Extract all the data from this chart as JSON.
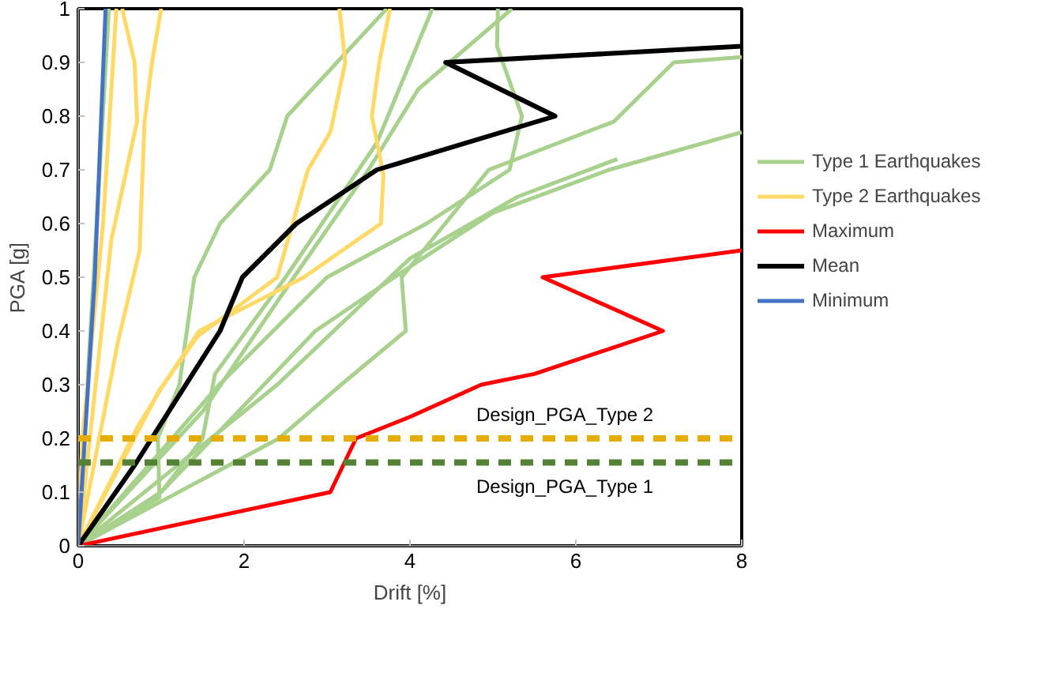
{
  "chart_data": {
    "type": "line",
    "xlabel": "Drift [%]",
    "ylabel": "PGA [g]",
    "xlim": [
      0,
      8
    ],
    "ylim": [
      0,
      1
    ],
    "xticks": [
      0,
      2,
      4,
      6,
      8
    ],
    "yticks": [
      0,
      0.1,
      0.2,
      0.3,
      0.4,
      0.5,
      0.6,
      0.7,
      0.8,
      0.9,
      1
    ],
    "grid": false,
    "legend": "right",
    "marker": "none",
    "line_style": "solid",
    "series": [
      {
        "name": "Type 1 Earthquakes",
        "color": "#a9d18e",
        "x": [
          0,
          0.37
        ],
        "values": [
          0,
          1.0
        ]
      },
      {
        "color": "#a9d18e",
        "x": [
          0,
          0.98,
          0.96,
          1.22,
          1.4,
          1.71,
          2.31,
          2.52,
          3.72
        ],
        "values": [
          0,
          0.09,
          0.2,
          0.3,
          0.5,
          0.6,
          0.7,
          0.8,
          1.0
        ]
      },
      {
        "color": "#a9d18e",
        "x": [
          0,
          1.0,
          1.5,
          1.65,
          2.5,
          3.6,
          4.27
        ],
        "values": [
          0,
          0.1,
          0.2,
          0.32,
          0.5,
          0.75,
          1.0
        ]
      },
      {
        "color": "#a9d18e",
        "x": [
          0,
          1.5,
          2.6,
          3.5,
          4.1,
          5.23
        ],
        "values": [
          0,
          0.25,
          0.5,
          0.7,
          0.85,
          1.0
        ]
      },
      {
        "color": "#a9d18e",
        "x": [
          0,
          1.7,
          3.0,
          4.2,
          5.2,
          5.35,
          5.05,
          5.06
        ],
        "values": [
          0,
          0.3,
          0.5,
          0.6,
          0.7,
          0.8,
          0.93,
          1.0
        ]
      },
      {
        "color": "#a9d18e",
        "x": [
          0,
          2.42,
          3.17,
          3.95,
          3.9,
          4.95,
          6.46,
          7.18,
          8
        ],
        "values": [
          0,
          0.2,
          0.3,
          0.4,
          0.5,
          0.7,
          0.79,
          0.9,
          0.91
        ]
      },
      {
        "color": "#a9d18e",
        "x": [
          0,
          1.0,
          2.86,
          4.1,
          5.0,
          6.4,
          8
        ],
        "values": [
          0,
          0.1,
          0.4,
          0.53,
          0.62,
          0.7,
          0.77
        ]
      },
      {
        "color": "#a9d18e",
        "x": [
          0,
          2.4,
          4.0,
          5.3,
          6.5
        ],
        "values": [
          0,
          0.3,
          0.535,
          0.65,
          0.72
        ]
      },
      {
        "name": "Type 2 Earthquakes",
        "color": "#ffd966",
        "x": [
          0,
          0.05,
          0.3,
          0.46
        ],
        "values": [
          0,
          0.2,
          0.6,
          1.0
        ]
      },
      {
        "color": "#ffd966",
        "x": [
          0,
          0.4,
          0.71,
          0.68,
          0.53
        ],
        "values": [
          0,
          0.57,
          0.79,
          0.9,
          1.0
        ]
      },
      {
        "color": "#ffd966",
        "x": [
          0,
          0.48,
          0.74,
          0.8,
          0.89,
          1.0
        ],
        "values": [
          0,
          0.38,
          0.55,
          0.79,
          0.9,
          1.0
        ]
      },
      {
        "color": "#ffd966",
        "x": [
          0,
          0.71,
          1.03,
          1.46,
          1.71,
          2.72,
          3.65,
          3.68,
          3.54,
          3.63,
          3.76
        ],
        "values": [
          0,
          0.22,
          0.3,
          0.4,
          0.42,
          0.5,
          0.6,
          0.69,
          0.8,
          0.9,
          1.0
        ]
      },
      {
        "color": "#ffd966",
        "x": [
          0,
          0.98,
          1.44,
          2.4,
          2.77,
          3.04,
          3.22,
          3.15
        ],
        "values": [
          0,
          0.29,
          0.39,
          0.5,
          0.7,
          0.77,
          0.9,
          1.0
        ]
      },
      {
        "name": "Maximum",
        "color": "#ff0000",
        "x": [
          0,
          3.04,
          3.35,
          4.0,
          4.86,
          5.5,
          7.05,
          5.6,
          8
        ],
        "values": [
          0,
          0.1,
          0.2,
          0.24,
          0.3,
          0.32,
          0.4,
          0.5,
          0.55
        ]
      },
      {
        "name": "Mean",
        "color": "#000000",
        "x": [
          0,
          0.68,
          1.71,
          1.98,
          2.63,
          3.6,
          5.75,
          4.43,
          8
        ],
        "values": [
          0,
          0.15,
          0.4,
          0.5,
          0.6,
          0.7,
          0.8,
          0.9,
          0.93
        ]
      },
      {
        "name": "Minimum",
        "color": "#4472c4",
        "x": [
          0,
          0.2,
          0.33
        ],
        "values": [
          0,
          0.5,
          1.0
        ]
      }
    ],
    "ref_lines": [
      {
        "axis": "y",
        "value": 0.2,
        "label": "Design_PGA_Type 2",
        "color": "#e6ac00",
        "line_style": "dashed"
      },
      {
        "axis": "y",
        "value": 0.155,
        "label": "Design_PGA_Type 1",
        "color": "#548235",
        "line_style": "dashed"
      }
    ]
  }
}
